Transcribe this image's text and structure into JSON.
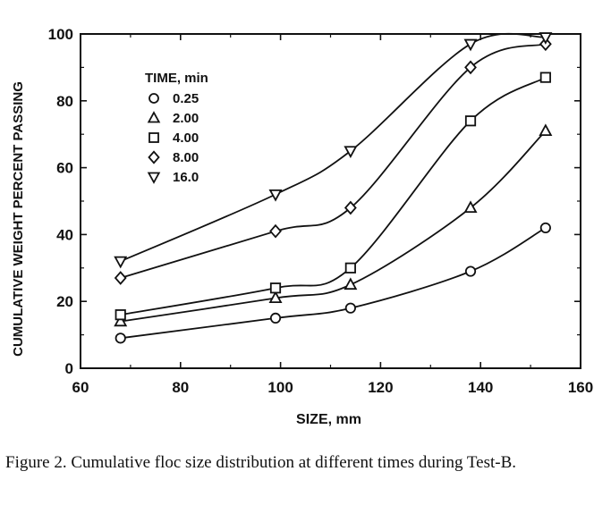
{
  "chart_data": {
    "type": "scatter",
    "xlabel": "SIZE, mm",
    "ylabel": "CUMULATIVE WEIGHT PERCENT PASSING",
    "xlim": [
      60,
      160
    ],
    "ylim": [
      0,
      100
    ],
    "x_ticks": [
      60,
      80,
      100,
      120,
      140,
      160
    ],
    "y_ticks": [
      0,
      20,
      40,
      60,
      80,
      100
    ],
    "grid": false,
    "legend_title": "TIME, min",
    "legend_position": "top-left",
    "x": [
      68,
      99,
      114,
      138,
      153
    ],
    "series": [
      {
        "name": "0.25",
        "marker": "circle",
        "values": [
          9,
          15,
          18,
          29,
          42
        ]
      },
      {
        "name": "2.00",
        "marker": "triangle-up",
        "values": [
          14,
          21,
          25,
          48,
          71
        ]
      },
      {
        "name": "4.00",
        "marker": "square",
        "values": [
          16,
          24,
          30,
          74,
          87
        ]
      },
      {
        "name": "8.00",
        "marker": "diamond",
        "values": [
          27,
          41,
          48,
          90,
          97
        ]
      },
      {
        "name": "16.0",
        "marker": "triangle-down",
        "values": [
          32,
          52,
          65,
          97,
          99
        ]
      }
    ]
  },
  "caption": "Figure 2.  Cumulative floc size distribution at different times during Test-B."
}
